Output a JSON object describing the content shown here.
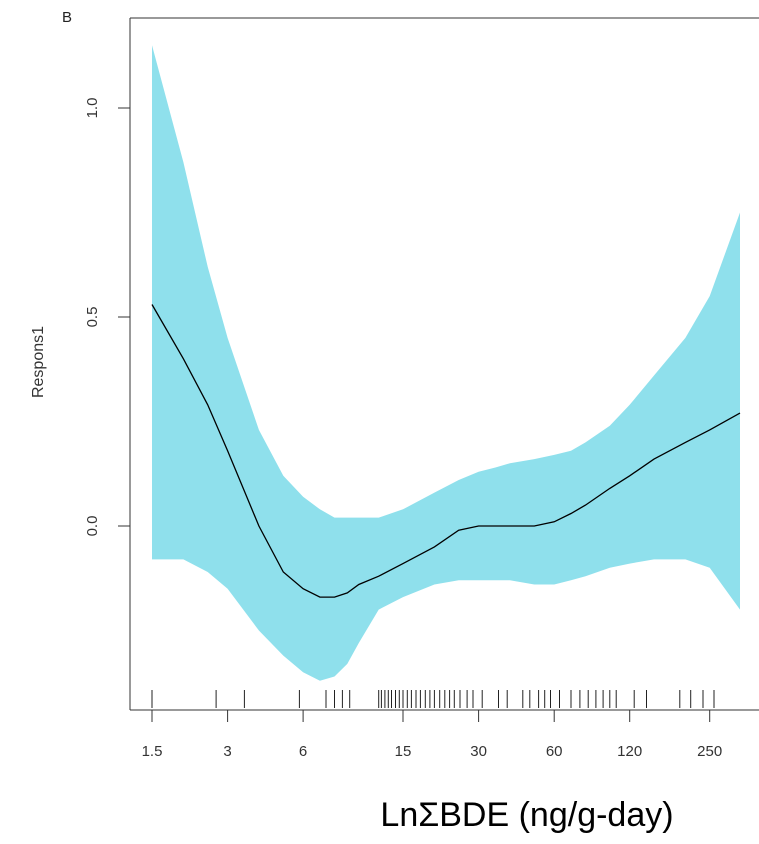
{
  "chart_data": {
    "type": "line",
    "panel_label": "B",
    "xlabel": "LnΣBDE (ng/g-day)",
    "ylabel": "Respons1",
    "x_scale": "log",
    "xlim": [
      1.5,
      330
    ],
    "ylim": [
      -0.38,
      1.2
    ],
    "x_ticks": [
      1.5,
      3,
      6,
      15,
      30,
      60,
      120,
      250
    ],
    "x_tick_labels": [
      "1.5",
      "3",
      "6",
      "15",
      "30",
      "60",
      "120",
      "250"
    ],
    "y_ticks": [
      0.0,
      0.5,
      1.0
    ],
    "y_tick_labels": [
      "0.0",
      "0.5",
      "1.0"
    ],
    "colors": {
      "band": "#8fe0ec",
      "line": "#000000",
      "axis": "#333333"
    },
    "series": [
      {
        "x": [
          1.5,
          2.0,
          2.5,
          3.0,
          4.0,
          5.0,
          6.0,
          7.0,
          8.0,
          9.0,
          10.0,
          12.0,
          15.0,
          20.0,
          25.0,
          30.0,
          35.0,
          40.0,
          50.0,
          60.0,
          70.0,
          80.0,
          100.0,
          120.0,
          150.0,
          200.0,
          250.0,
          330.0
        ],
        "y": [
          0.53,
          0.4,
          0.29,
          0.18,
          0.0,
          -0.11,
          -0.15,
          -0.17,
          -0.17,
          -0.16,
          -0.14,
          -0.12,
          -0.09,
          -0.05,
          -0.01,
          0.0,
          0.0,
          0.0,
          0.0,
          0.01,
          0.03,
          0.05,
          0.09,
          0.12,
          0.16,
          0.2,
          0.23,
          0.27
        ]
      }
    ],
    "confidence_band": {
      "x": [
        1.5,
        2.0,
        2.5,
        3.0,
        4.0,
        5.0,
        6.0,
        7.0,
        8.0,
        9.0,
        10.0,
        12.0,
        15.0,
        20.0,
        25.0,
        30.0,
        35.0,
        40.0,
        50.0,
        60.0,
        70.0,
        80.0,
        100.0,
        120.0,
        150.0,
        200.0,
        250.0,
        330.0
      ],
      "upper": [
        1.15,
        0.87,
        0.62,
        0.45,
        0.23,
        0.12,
        0.07,
        0.04,
        0.02,
        0.02,
        0.02,
        0.02,
        0.04,
        0.08,
        0.11,
        0.13,
        0.14,
        0.15,
        0.16,
        0.17,
        0.18,
        0.2,
        0.24,
        0.29,
        0.36,
        0.45,
        0.55,
        0.75
      ],
      "lower": [
        -0.08,
        -0.08,
        -0.11,
        -0.15,
        -0.25,
        -0.31,
        -0.35,
        -0.37,
        -0.36,
        -0.33,
        -0.28,
        -0.2,
        -0.17,
        -0.14,
        -0.13,
        -0.13,
        -0.13,
        -0.13,
        -0.14,
        -0.14,
        -0.13,
        -0.12,
        -0.1,
        -0.09,
        -0.08,
        -0.08,
        -0.1,
        -0.2
      ]
    },
    "rug_x": [
      1.5,
      2.7,
      3.5,
      5.8,
      7.4,
      8.0,
      8.6,
      9.2,
      12.0,
      12.3,
      12.7,
      13.1,
      13.5,
      14.0,
      14.5,
      15.0,
      15.6,
      16.2,
      16.9,
      17.6,
      18.4,
      19.2,
      20.0,
      21.0,
      22.0,
      23.0,
      24.0,
      25.3,
      27.0,
      28.5,
      31.0,
      36.0,
      39.0,
      45.0,
      48.0,
      52.0,
      55.0,
      58.0,
      63.0,
      70.0,
      76.0,
      82.0,
      88.0,
      94.0,
      100.0,
      106.0,
      125.0,
      140.0,
      190.0,
      210.0,
      235.0,
      260.0
    ]
  }
}
